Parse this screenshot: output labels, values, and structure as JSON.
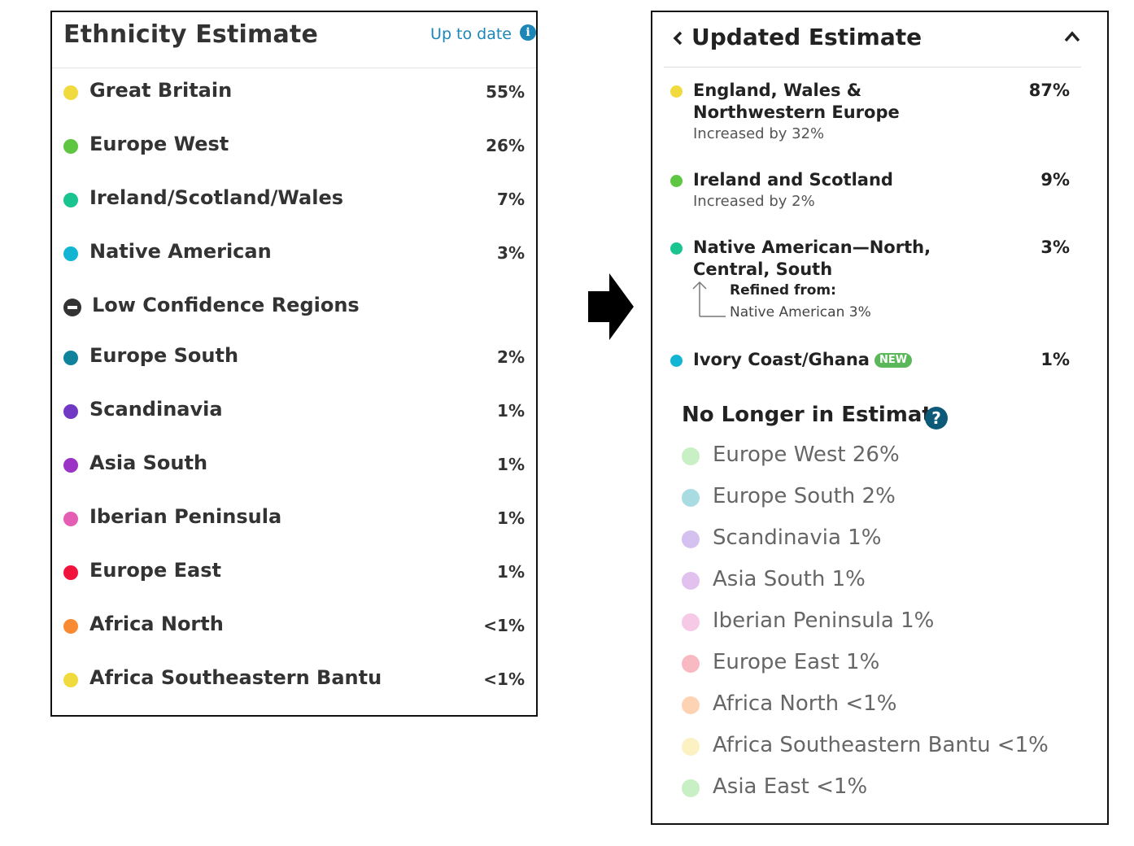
{
  "left_panel": {
    "title": "Ethnicity Estimate",
    "status_link": "Up to date",
    "info_icon": "i",
    "regions": [
      {
        "name": "Great Britain",
        "percent": "55%",
        "color": "#f0da3d"
      },
      {
        "name": "Europe West",
        "percent": "26%",
        "color": "#5ec641"
      },
      {
        "name": "Ireland/Scotland/Wales",
        "percent": "7%",
        "color": "#19c490"
      },
      {
        "name": "Native American",
        "percent": "3%",
        "color": "#13b6d2"
      }
    ],
    "low_confidence_label": "Low Confidence Regions",
    "low_confidence_regions": [
      {
        "name": "Europe South",
        "percent": "2%",
        "color": "#11829c"
      },
      {
        "name": "Scandinavia",
        "percent": "1%",
        "color": "#7039c4"
      },
      {
        "name": "Asia South",
        "percent": "1%",
        "color": "#9b33c5"
      },
      {
        "name": "Iberian Peninsula",
        "percent": "1%",
        "color": "#e45fb4"
      },
      {
        "name": "Europe East",
        "percent": "1%",
        "color": "#f0143d"
      },
      {
        "name": "Africa North",
        "percent": "<1%",
        "color": "#f98a32"
      },
      {
        "name": "Africa Southeastern Bantu",
        "percent": "<1%",
        "color": "#f0da3d"
      }
    ]
  },
  "right_panel": {
    "title": "Updated Estimate",
    "regions": [
      {
        "name": "England, Wales & Northwestern Europe",
        "percent": "87%",
        "color": "#f0da3d",
        "change": "Increased by 32%"
      },
      {
        "name": "Ireland and Scotland",
        "percent": "9%",
        "color": "#5ec641",
        "change": "Increased by 2%"
      },
      {
        "name": "Native American—North, Central, South",
        "percent": "3%",
        "color": "#19c490",
        "refined_label": "Refined from:",
        "refined_value": "Native American 3%"
      },
      {
        "name": "Ivory Coast/Ghana",
        "percent": "1%",
        "color": "#13b6d2",
        "badge": "NEW"
      }
    ],
    "no_longer_title": "No Longer in Estimate",
    "help_icon": "?",
    "no_longer": [
      {
        "label": "Europe West 26%",
        "color": "#c9efc4"
      },
      {
        "label": "Europe South 2%",
        "color": "#a9dbe3"
      },
      {
        "label": "Scandinavia 1%",
        "color": "#d5c1ef"
      },
      {
        "label": "Asia South 1%",
        "color": "#e3c1ef"
      },
      {
        "label": "Iberian Peninsula 1%",
        "color": "#f6c9e6"
      },
      {
        "label": "Europe East 1%",
        "color": "#f9b9c3"
      },
      {
        "label": "Africa North <1%",
        "color": "#fdd3b3"
      },
      {
        "label": "Africa Southeastern Bantu <1%",
        "color": "#fbf1c2"
      },
      {
        "label": "Asia East <1%",
        "color": "#c9efc4"
      }
    ]
  }
}
